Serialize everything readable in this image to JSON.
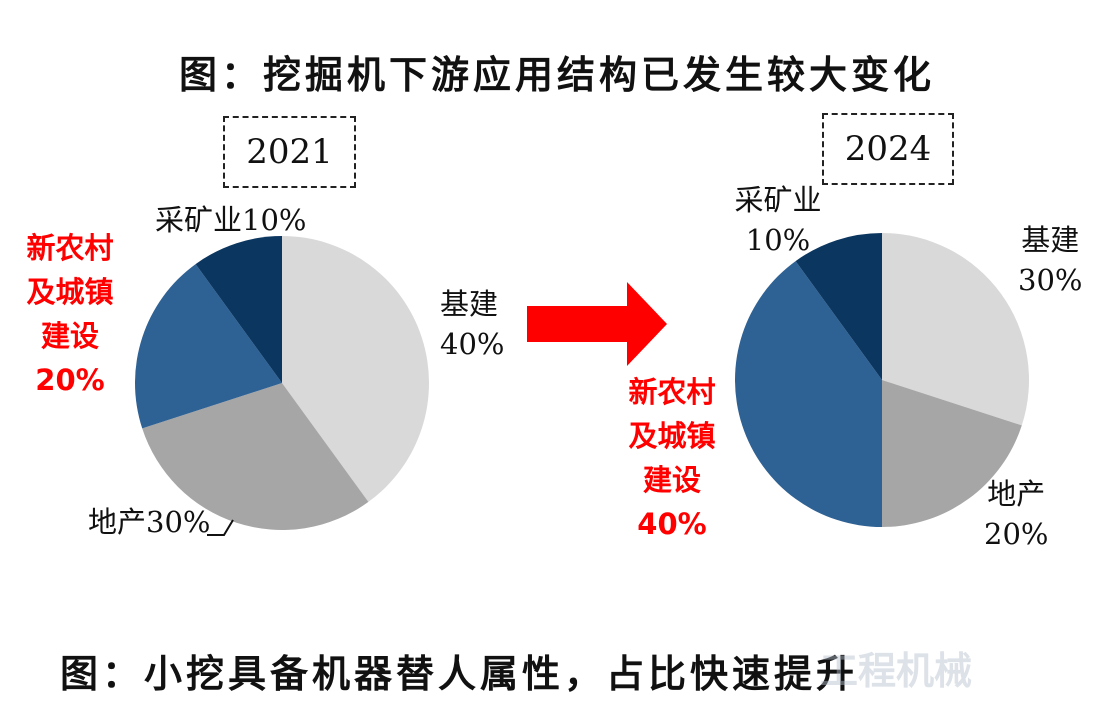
{
  "title": "图：挖掘机下游应用结构已发生较大变化",
  "bottom_caption": "图：小挖具备机器替人属性，占比快速提升",
  "watermark": "工程机械",
  "colors": {
    "infrastructure": "#d9d9d9",
    "real_estate": "#a6a6a6",
    "rural": "#2e6194",
    "mining": "#0b3660",
    "arrow": "#ff0000",
    "highlight_text": "#ff0000"
  },
  "chart_data": [
    {
      "type": "pie",
      "title": "2021",
      "slices": [
        {
          "key": "infra",
          "name": "基建",
          "value": 40,
          "label": "40%"
        },
        {
          "key": "estate",
          "name": "地产",
          "value": 30,
          "label": "30%"
        },
        {
          "key": "rural",
          "name": "新农村及城镇建设",
          "name_lines": [
            "新农村",
            "及城镇",
            "建设"
          ],
          "value": 20,
          "label": "20%"
        },
        {
          "key": "mining",
          "name": "采矿业",
          "value": 10,
          "label": "10%"
        }
      ]
    },
    {
      "type": "pie",
      "title": "2024",
      "slices": [
        {
          "key": "infra",
          "name": "基建",
          "value": 30,
          "label": "30%"
        },
        {
          "key": "estate",
          "name": "地产",
          "value": 20,
          "label": "20%"
        },
        {
          "key": "rural",
          "name": "新农村及城镇建设",
          "name_lines": [
            "新农村",
            "及城镇",
            "建设"
          ],
          "value": 40,
          "label": "40%"
        },
        {
          "key": "mining",
          "name": "采矿业",
          "value": 10,
          "label": "10%"
        }
      ]
    }
  ]
}
